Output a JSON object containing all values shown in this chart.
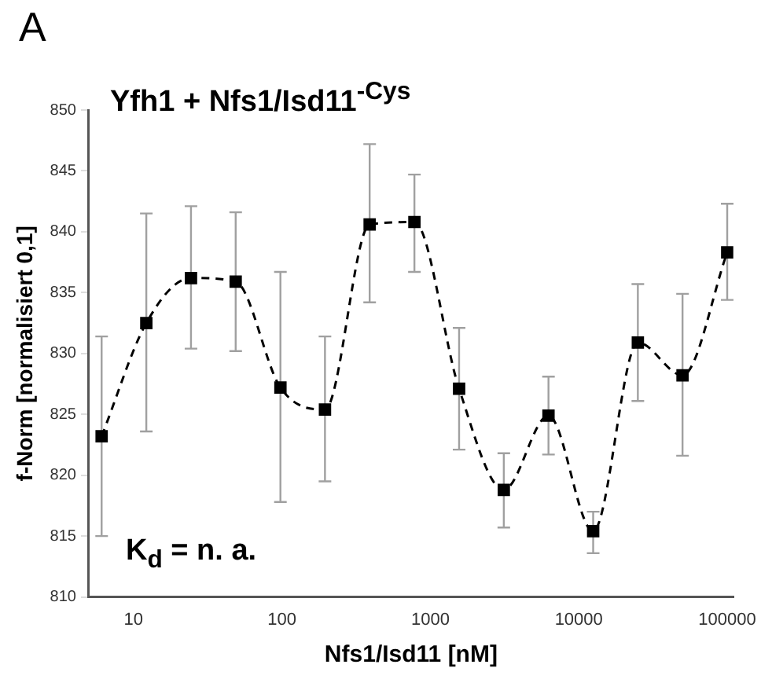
{
  "chart_data": {
    "type": "line",
    "title": "Yfh1 + Nfs1/Isd11$^{-Cys}$",
    "xlabel": "Nfs1/Isd11 [nM]",
    "ylabel": "f-Norm [normalisiert 0,1]",
    "annotations": [
      "A",
      "K$_{d}$ = n. a."
    ],
    "x": [
      6.1,
      12.2,
      24.4,
      48.8,
      97.7,
      195,
      390,
      781,
      1562,
      3125,
      6250,
      12500,
      25000,
      50000,
      100000
    ],
    "series": [
      {
        "color": "#000000",
        "values": [
          823.2,
          832.5,
          836.2,
          835.9,
          827.2,
          825.4,
          840.6,
          840.8,
          827.1,
          818.8,
          824.9,
          815.4,
          830.9,
          828.2,
          838.3
        ],
        "errors": [
          [
            815.0,
            831.4
          ],
          [
            823.6,
            841.5
          ],
          [
            830.4,
            842.1
          ],
          [
            830.2,
            841.6
          ],
          [
            817.8,
            836.7
          ],
          [
            819.5,
            831.4
          ],
          [
            834.2,
            847.2
          ],
          [
            836.7,
            844.7
          ],
          [
            822.1,
            832.1
          ],
          [
            815.7,
            821.8
          ],
          [
            821.7,
            828.1
          ],
          [
            813.6,
            817.0
          ],
          [
            826.1,
            835.7
          ],
          [
            821.6,
            834.9
          ],
          [
            834.4,
            842.3
          ]
        ]
      }
    ],
    "log": "x",
    "xlim": [
      5,
      110000
    ],
    "xticks": [
      10,
      100,
      1000,
      10000,
      100000
    ],
    "ylim": [
      810,
      850
    ],
    "yticks": [
      810,
      815,
      820,
      825,
      830,
      835,
      840,
      845,
      850
    ],
    "grid": false,
    "legend": false,
    "marker": "square",
    "line_style": "dashed"
  }
}
